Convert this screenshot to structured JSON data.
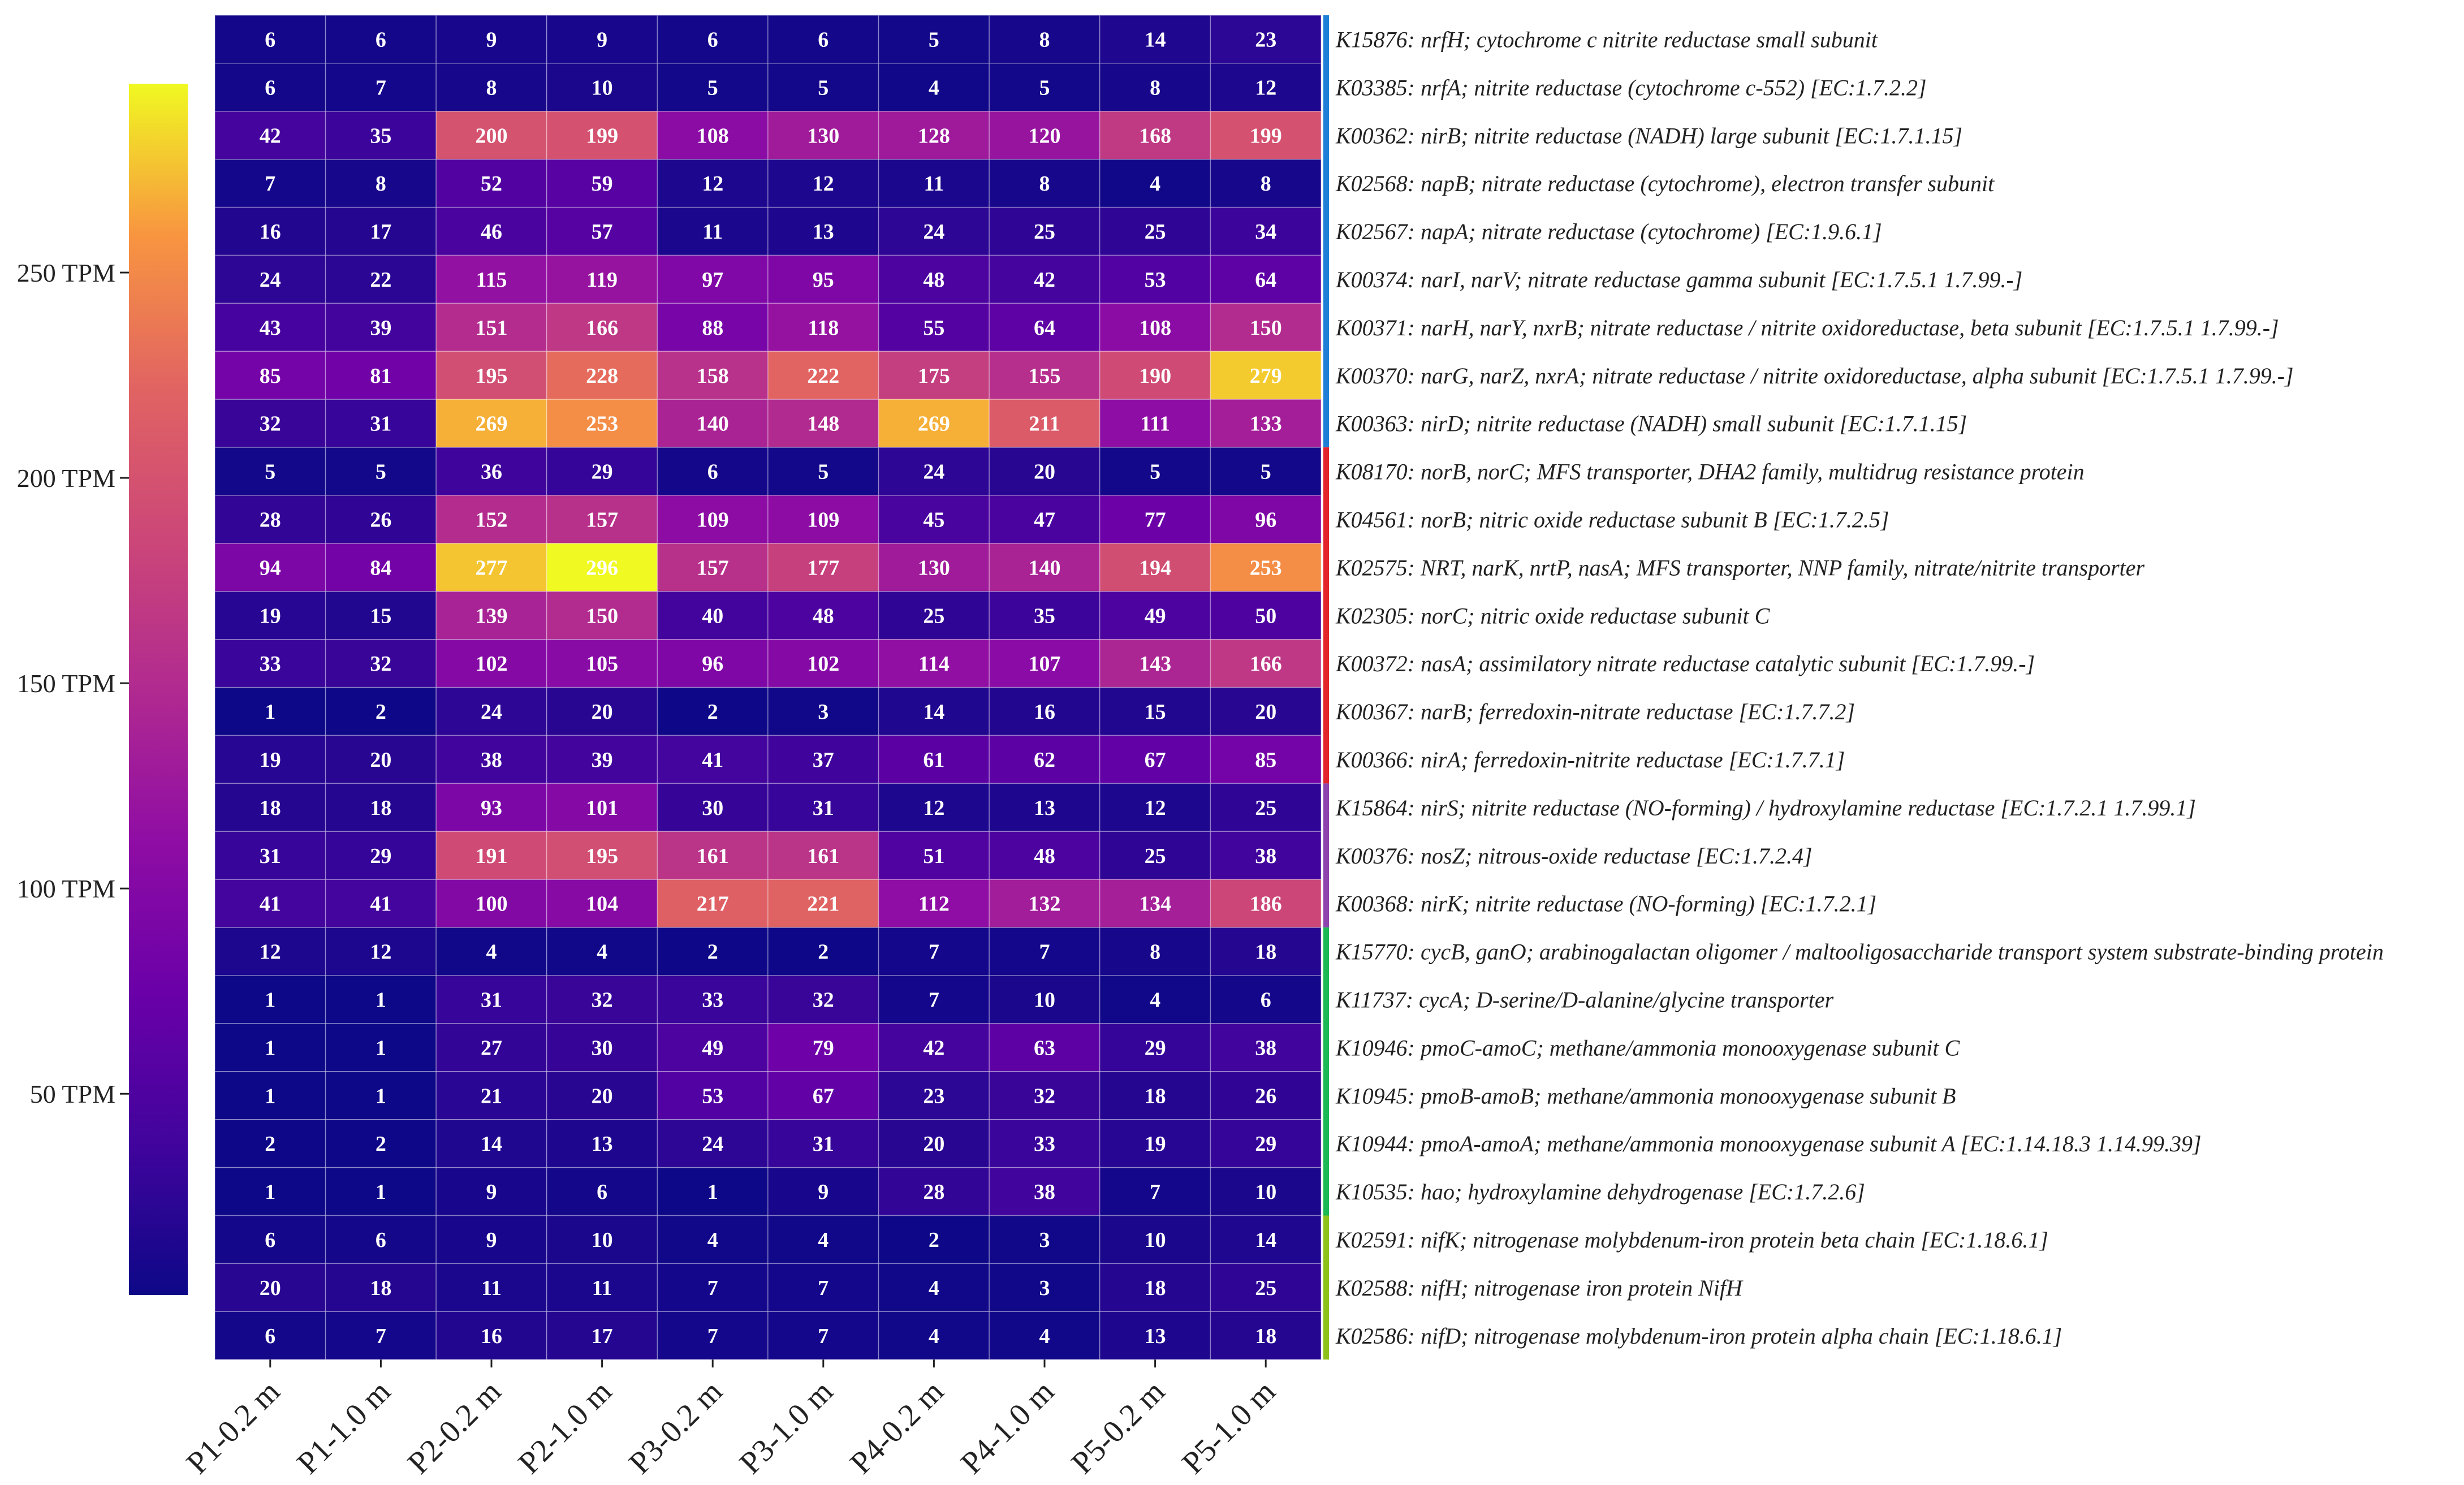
{
  "chart_data": {
    "type": "heatmap",
    "colormap": "plasma",
    "colorbar": {
      "ticks": [
        50,
        100,
        150,
        200,
        250
      ],
      "tick_labels": [
        "50 TPM",
        "100 TPM",
        "150 TPM",
        "200 TPM",
        "250 TPM"
      ],
      "min": 1,
      "max": 296
    },
    "columns": [
      "P1-0.2 m",
      "P1-1.0 m",
      "P2-0.2 m",
      "P2-1.0 m",
      "P3-0.2 m",
      "P3-1.0 m",
      "P4-0.2 m",
      "P4-1.0 m",
      "P5-0.2 m",
      "P5-1.0 m"
    ],
    "rows": [
      "K15876: nrfH; cytochrome c nitrite reductase small subunit",
      "K03385: nrfA; nitrite reductase (cytochrome c-552) [EC:1.7.2.2]",
      "K00362: nirB; nitrite reductase (NADH) large subunit [EC:1.7.1.15]",
      "K02568: napB; nitrate reductase (cytochrome), electron transfer subunit",
      "K02567: napA; nitrate reductase (cytochrome) [EC:1.9.6.1]",
      "K00374: narI, narV; nitrate reductase gamma subunit [EC:1.7.5.1 1.7.99.-]",
      "K00371: narH, narY, nxrB; nitrate reductase / nitrite oxidoreductase, beta subunit [EC:1.7.5.1 1.7.99.-]",
      "K00370: narG, narZ, nxrA; nitrate reductase / nitrite oxidoreductase, alpha subunit [EC:1.7.5.1 1.7.99.-]",
      "K00363: nirD; nitrite reductase (NADH) small subunit [EC:1.7.1.15]",
      "K08170: norB, norC; MFS transporter, DHA2 family, multidrug resistance protein",
      "K04561: norB; nitric oxide reductase subunit B [EC:1.7.2.5]",
      "K02575: NRT, narK, nrtP, nasA; MFS transporter, NNP family, nitrate/nitrite transporter",
      "K02305: norC; nitric oxide reductase subunit C",
      "K00372: nasA; assimilatory nitrate reductase catalytic subunit [EC:1.7.99.-]",
      "K00367: narB; ferredoxin-nitrate reductase [EC:1.7.7.2]",
      "K00366: nirA; ferredoxin-nitrite reductase [EC:1.7.7.1]",
      "K15864: nirS; nitrite reductase (NO-forming) / hydroxylamine reductase [EC:1.7.2.1 1.7.99.1]",
      "K00376: nosZ; nitrous-oxide reductase [EC:1.7.2.4]",
      "K00368: nirK; nitrite reductase (NO-forming) [EC:1.7.2.1]",
      "K15770: cycB, ganO; arabinogalactan oligomer / maltooligosaccharide transport system substrate-binding protein",
      "K11737: cycA; D-serine/D-alanine/glycine transporter",
      "K10946: pmoC-amoC; methane/ammonia monooxygenase subunit C",
      "K10945: pmoB-amoB; methane/ammonia monooxygenase subunit B",
      "K10944: pmoA-amoA; methane/ammonia monooxygenase subunit A [EC:1.14.18.3 1.14.99.39]",
      "K10535: hao; hydroxylamine dehydrogenase [EC:1.7.2.6]",
      "K02591: nifK; nitrogenase molybdenum-iron protein beta chain [EC:1.18.6.1]",
      "K02588: nifH; nitrogenase iron protein NifH",
      "K02586: nifD; nitrogenase molybdenum-iron protein alpha chain [EC:1.18.6.1]"
    ],
    "values": [
      [
        6,
        6,
        9,
        9,
        6,
        6,
        5,
        8,
        14,
        23
      ],
      [
        6,
        7,
        8,
        10,
        5,
        5,
        4,
        5,
        8,
        12
      ],
      [
        42,
        35,
        200,
        199,
        108,
        130,
        128,
        120,
        168,
        199
      ],
      [
        7,
        8,
        52,
        59,
        12,
        12,
        11,
        8,
        4,
        8
      ],
      [
        16,
        17,
        46,
        57,
        11,
        13,
        24,
        25,
        25,
        34
      ],
      [
        24,
        22,
        115,
        119,
        97,
        95,
        48,
        42,
        53,
        64
      ],
      [
        43,
        39,
        151,
        166,
        88,
        118,
        55,
        64,
        108,
        150
      ],
      [
        85,
        81,
        195,
        228,
        158,
        222,
        175,
        155,
        190,
        279
      ],
      [
        32,
        31,
        269,
        253,
        140,
        148,
        269,
        211,
        111,
        133
      ],
      [
        5,
        5,
        36,
        29,
        6,
        5,
        24,
        20,
        5,
        5
      ],
      [
        28,
        26,
        152,
        157,
        109,
        109,
        45,
        47,
        77,
        96
      ],
      [
        94,
        84,
        277,
        296,
        157,
        177,
        130,
        140,
        194,
        253
      ],
      [
        19,
        15,
        139,
        150,
        40,
        48,
        25,
        35,
        49,
        50
      ],
      [
        33,
        32,
        102,
        105,
        96,
        102,
        114,
        107,
        143,
        166
      ],
      [
        1,
        2,
        24,
        20,
        2,
        3,
        14,
        16,
        15,
        20
      ],
      [
        19,
        20,
        38,
        39,
        41,
        37,
        61,
        62,
        67,
        85
      ],
      [
        18,
        18,
        93,
        101,
        30,
        31,
        12,
        13,
        12,
        25
      ],
      [
        31,
        29,
        191,
        195,
        161,
        161,
        51,
        48,
        25,
        38
      ],
      [
        41,
        41,
        100,
        104,
        217,
        221,
        112,
        132,
        134,
        186
      ],
      [
        12,
        12,
        4,
        4,
        2,
        2,
        7,
        7,
        8,
        18
      ],
      [
        1,
        1,
        31,
        32,
        33,
        32,
        7,
        10,
        4,
        6
      ],
      [
        1,
        1,
        27,
        30,
        49,
        79,
        42,
        63,
        29,
        38
      ],
      [
        1,
        1,
        21,
        20,
        53,
        67,
        23,
        32,
        18,
        26
      ],
      [
        2,
        2,
        14,
        13,
        24,
        31,
        20,
        33,
        19,
        29
      ],
      [
        1,
        1,
        9,
        6,
        1,
        9,
        28,
        38,
        7,
        10
      ],
      [
        6,
        6,
        9,
        10,
        4,
        4,
        2,
        3,
        10,
        14
      ],
      [
        20,
        18,
        11,
        11,
        7,
        7,
        4,
        3,
        18,
        25
      ],
      [
        6,
        7,
        16,
        17,
        7,
        7,
        4,
        4,
        13,
        18
      ]
    ],
    "row_groups": [
      {
        "start": 0,
        "end": 8,
        "color": "#1f7fd6"
      },
      {
        "start": 9,
        "end": 15,
        "color": "#e3242b"
      },
      {
        "start": 16,
        "end": 18,
        "color": "#8e44ad"
      },
      {
        "start": 19,
        "end": 24,
        "color": "#1db954"
      },
      {
        "start": 25,
        "end": 27,
        "color": "#8cc21a"
      }
    ]
  }
}
